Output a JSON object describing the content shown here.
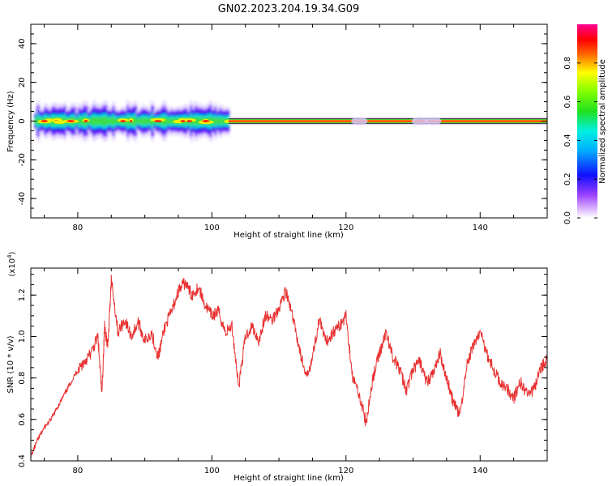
{
  "title": "GN02.2023.204.19.34.G09",
  "colors": {
    "snr_line": "#e83030",
    "spectrum_dark": "#0000e8",
    "spectrum_cyan": "#00e0e0",
    "spectrum_green": "#40e040",
    "spectrum_yellow": "#f0f000",
    "spectrum_red": "#ff1010"
  },
  "chart_data": [
    {
      "type": "heatmap",
      "xlabel": "Height of straight line (km)",
      "ylabel": "Frequency (Hz)",
      "xlim": [
        73,
        150
      ],
      "ylim": [
        -50,
        50
      ],
      "xticks": [
        80,
        100,
        120,
        140
      ],
      "yticks": [
        40,
        20,
        0,
        -20,
        -40
      ],
      "grid": false,
      "colorbar": {
        "label": "Normalized spectral amplitude",
        "range": [
          0,
          1
        ],
        "ticks": [
          "0.0",
          "0.2",
          "0.4",
          "0.6",
          "0.8"
        ],
        "colormap": "rainbow (purple-blue-cyan-green-yellow-red-magenta)"
      },
      "segments": [
        {
          "x": [
            73.5,
            102.5
          ],
          "center_freq": 0.5,
          "halfwidth_hz": 5,
          "character": "noisy broad band with blobs"
        },
        {
          "x": [
            102.5,
            150
          ],
          "center_freq": 0,
          "halfwidth_hz": 2,
          "character": "narrow strong line"
        }
      ]
    },
    {
      "type": "line",
      "xlabel": "Height of straight line (km)",
      "ylabel": "SNR (10 * v/v)",
      "y_multiplier": "(x10^4)",
      "xlim": [
        73,
        150
      ],
      "ylim": [
        0.4,
        1.33
      ],
      "xticks": [
        80,
        100,
        120,
        140
      ],
      "yticks": [
        "0.4",
        "0.6",
        "0.8",
        "1.0",
        "1.2"
      ],
      "grid": false,
      "series": [
        {
          "x": [
            73.0,
            74.0,
            75.0,
            76.0,
            77.0,
            78.0,
            79.0,
            80.0,
            81.0,
            82.0,
            83.0,
            83.6,
            84.0,
            84.5,
            85.0,
            86.0,
            87.0,
            88.0,
            89.0,
            90.0,
            91.0,
            92.0,
            93.0,
            94.0,
            95.0,
            96.0,
            97.0,
            98.0,
            99.0,
            100.0,
            101.0,
            102.0,
            103.0,
            104.0,
            105.0,
            106.0,
            107.0,
            108.0,
            109.0,
            110.0,
            111.0,
            112.0,
            113.0,
            114.0,
            115.0,
            116.0,
            117.0,
            118.0,
            119.0,
            120.0,
            121.0,
            122.0,
            123.0,
            124.0,
            125.0,
            126.0,
            127.0,
            128.0,
            129.0,
            130.0,
            131.0,
            132.0,
            133.0,
            134.0,
            135.0,
            136.0,
            137.0,
            138.0,
            139.0,
            140.0,
            141.0,
            142.0,
            143.0,
            144.0,
            145.0,
            146.0,
            147.0,
            148.0,
            149.0,
            150.0
          ],
          "y": [
            0.42,
            0.5,
            0.56,
            0.6,
            0.66,
            0.72,
            0.78,
            0.84,
            0.88,
            0.92,
            1.0,
            0.72,
            1.05,
            0.95,
            1.28,
            1.02,
            1.08,
            1.0,
            1.07,
            0.98,
            1.02,
            0.9,
            1.05,
            1.12,
            1.22,
            1.26,
            1.2,
            1.24,
            1.15,
            1.1,
            1.12,
            1.02,
            1.05,
            0.76,
            1.0,
            1.05,
            0.98,
            1.1,
            1.08,
            1.14,
            1.22,
            1.1,
            0.95,
            0.8,
            0.9,
            1.08,
            0.97,
            1.02,
            1.05,
            1.1,
            0.8,
            0.72,
            0.58,
            0.8,
            0.92,
            1.02,
            0.9,
            0.84,
            0.74,
            0.84,
            0.88,
            0.78,
            0.82,
            0.92,
            0.8,
            0.68,
            0.62,
            0.86,
            0.96,
            1.02,
            0.92,
            0.84,
            0.78,
            0.75,
            0.7,
            0.78,
            0.72,
            0.74,
            0.84,
            0.9
          ]
        }
      ]
    }
  ]
}
